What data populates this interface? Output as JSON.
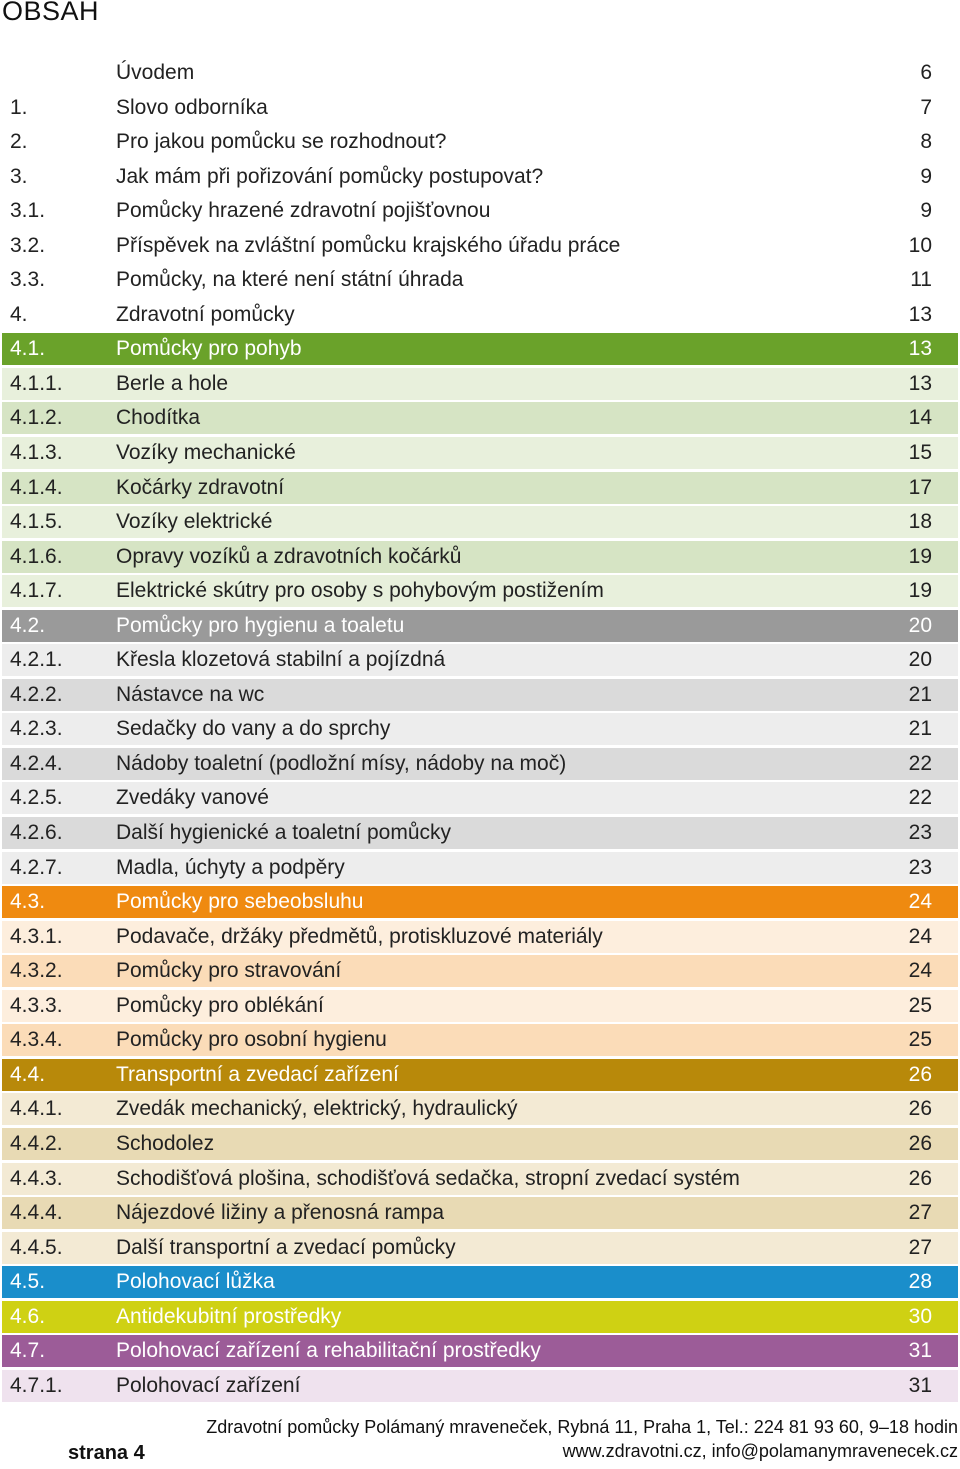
{
  "page": {
    "title": "OBSAH",
    "footer": {
      "page_label": "strana 4",
      "line1": "Zdravotní pomůcky Polámaný mraveneček, Rybná 11, Praha 1, Tel.: 224 81 93 60, 9–18 hodin",
      "line2": "www.zdravotni.cz, info@polamanymravenecek.cz"
    }
  },
  "toc": [
    {
      "num": "",
      "label": "Úvodem",
      "page": "6",
      "bg": "#ffffff",
      "fg": "#222222"
    },
    {
      "num": "1.",
      "label": "Slovo odborníka",
      "page": "7",
      "bg": "#ffffff",
      "fg": "#222222"
    },
    {
      "num": "2.",
      "label": "Pro jakou pomůcku se rozhodnout?",
      "page": "8",
      "bg": "#ffffff",
      "fg": "#222222"
    },
    {
      "num": "3.",
      "label": "Jak mám při pořizování pomůcky postupovat?",
      "page": "9",
      "bg": "#ffffff",
      "fg": "#222222"
    },
    {
      "num": "3.1.",
      "label": "Pomůcky hrazené zdravotní pojišťovnou",
      "page": "9",
      "bg": "#ffffff",
      "fg": "#222222"
    },
    {
      "num": "3.2.",
      "label": "Příspěvek na zvláštní pomůcku krajského úřadu práce",
      "page": "10",
      "bg": "#ffffff",
      "fg": "#222222"
    },
    {
      "num": "3.3.",
      "label": "Pomůcky, na které není státní úhrada",
      "page": "11",
      "bg": "#ffffff",
      "fg": "#222222"
    },
    {
      "num": "4.",
      "label": "Zdravotní pomůcky",
      "page": "13",
      "bg": "#ffffff",
      "fg": "#222222"
    },
    {
      "num": "4.1.",
      "label": "Pomůcky pro pohyb",
      "page": "13",
      "bg": "#6aa22a",
      "fg": "#ffffff"
    },
    {
      "num": "4.1.1.",
      "label": "Berle a hole",
      "page": "13",
      "bg": "#e8f0dc",
      "fg": "#222222"
    },
    {
      "num": "4.1.2.",
      "label": "Chodítka",
      "page": "14",
      "bg": "#d6e4c4",
      "fg": "#222222"
    },
    {
      "num": "4.1.3.",
      "label": "Vozíky mechanické",
      "page": "15",
      "bg": "#e8f0dc",
      "fg": "#222222"
    },
    {
      "num": "4.1.4.",
      "label": "Kočárky zdravotní",
      "page": "17",
      "bg": "#d6e4c4",
      "fg": "#222222"
    },
    {
      "num": "4.1.5.",
      "label": "Vozíky elektrické",
      "page": "18",
      "bg": "#e8f0dc",
      "fg": "#222222"
    },
    {
      "num": "4.1.6.",
      "label": "Opravy vozíků a zdravotních kočárků",
      "page": "19",
      "bg": "#d6e4c4",
      "fg": "#222222"
    },
    {
      "num": "4.1.7.",
      "label": "Elektrické skútry pro osoby s pohybovým postižením",
      "page": "19",
      "bg": "#e8f0dc",
      "fg": "#222222"
    },
    {
      "num": "4.2.",
      "label": "Pomůcky pro hygienu a toaletu",
      "page": "20",
      "bg": "#9a9a9a",
      "fg": "#ffffff"
    },
    {
      "num": "4.2.1.",
      "label": "Křesla klozetová stabilní a pojízdná",
      "page": "20",
      "bg": "#ededed",
      "fg": "#222222"
    },
    {
      "num": "4.2.2.",
      "label": "Nástavce na wc",
      "page": "21",
      "bg": "#dadada",
      "fg": "#222222"
    },
    {
      "num": "4.2.3.",
      "label": "Sedačky do vany a do sprchy",
      "page": "21",
      "bg": "#ededed",
      "fg": "#222222"
    },
    {
      "num": "4.2.4.",
      "label": "Nádoby toaletní (podložní mísy, nádoby na moč)",
      "page": "22",
      "bg": "#dadada",
      "fg": "#222222"
    },
    {
      "num": "4.2.5.",
      "label": "Zvedáky vanové",
      "page": "22",
      "bg": "#ededed",
      "fg": "#222222"
    },
    {
      "num": "4.2.6.",
      "label": "Další hygienické a toaletní pomůcky",
      "page": "23",
      "bg": "#dadada",
      "fg": "#222222"
    },
    {
      "num": "4.2.7.",
      "label": "Madla, úchyty a podpěry",
      "page": "23",
      "bg": "#ededed",
      "fg": "#222222"
    },
    {
      "num": "4.3.",
      "label": "Pomůcky pro sebeobsluhu",
      "page": "24",
      "bg": "#ef8a10",
      "fg": "#ffffff"
    },
    {
      "num": "4.3.1.",
      "label": "Podavače, držáky předmětů, protiskluzové materiály",
      "page": "24",
      "bg": "#fdeedd",
      "fg": "#222222"
    },
    {
      "num": "4.3.2.",
      "label": "Pomůcky pro stravování",
      "page": "24",
      "bg": "#fbdcb8",
      "fg": "#222222"
    },
    {
      "num": "4.3.3.",
      "label": "Pomůcky pro oblékání",
      "page": "25",
      "bg": "#fdeedd",
      "fg": "#222222"
    },
    {
      "num": "4.3.4.",
      "label": "Pomůcky pro osobní hygienu",
      "page": "25",
      "bg": "#fbdcb8",
      "fg": "#222222"
    },
    {
      "num": "4.4.",
      "label": "Transportní a zvedací zařízení",
      "page": "26",
      "bg": "#b8890a",
      "fg": "#ffffff"
    },
    {
      "num": "4.4.1.",
      "label": "Zvedák mechanický, elektrický, hydraulický",
      "page": "26",
      "bg": "#f3ead4",
      "fg": "#222222"
    },
    {
      "num": "4.4.2.",
      "label": "Schodolez",
      "page": "26",
      "bg": "#e8dab4",
      "fg": "#222222"
    },
    {
      "num": "4.4.3.",
      "label": "Schodišťová plošina, schodišťová sedačka, stropní zvedací systém",
      "page": "26",
      "bg": "#f3ead4",
      "fg": "#222222"
    },
    {
      "num": "4.4.4.",
      "label": "Nájezdové ližiny a přenosná rampa",
      "page": "27",
      "bg": "#e8dab4",
      "fg": "#222222"
    },
    {
      "num": "4.4.5.",
      "label": "Další transportní a zvedací pomůcky",
      "page": "27",
      "bg": "#f3ead4",
      "fg": "#222222"
    },
    {
      "num": "4.5.",
      "label": "Polohovací lůžka",
      "page": "28",
      "bg": "#1a8ecb",
      "fg": "#ffffff"
    },
    {
      "num": "4.6.",
      "label": "Antidekubitní prostředky",
      "page": "30",
      "bg": "#cfd113",
      "fg": "#ffffff"
    },
    {
      "num": "4.7.",
      "label": "Polohovací zařízení a rehabilitační prostředky",
      "page": "31",
      "bg": "#9c5c98",
      "fg": "#ffffff"
    },
    {
      "num": "4.7.1.",
      "label": "Polohovací zařízení",
      "page": "31",
      "bg": "#efe2ee",
      "fg": "#222222"
    }
  ]
}
